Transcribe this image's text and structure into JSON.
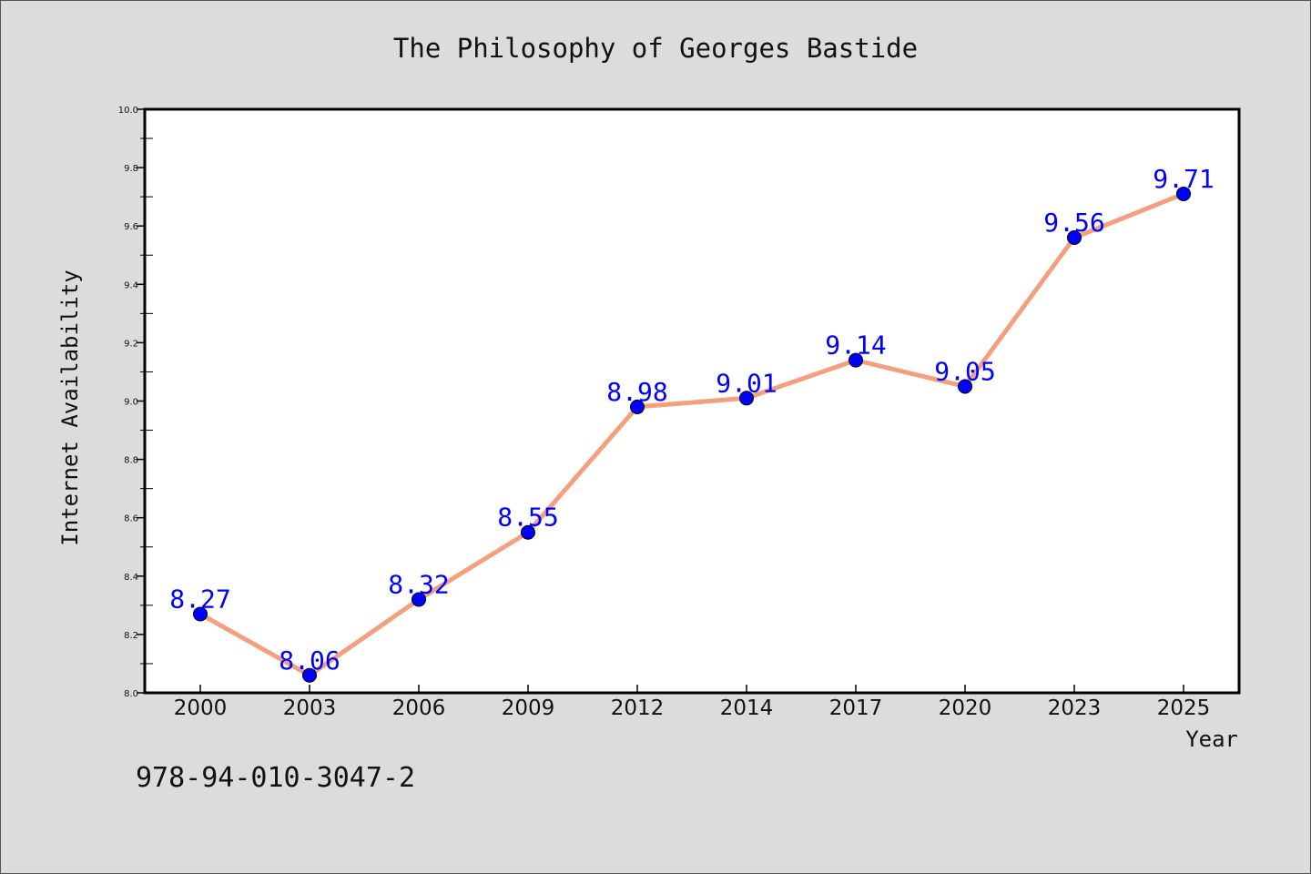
{
  "chart_data": {
    "type": "line",
    "title": "The Philosophy of Georges Bastide",
    "xlabel": "Year",
    "ylabel": "Internet Availability",
    "categories": [
      "2000",
      "2003",
      "2006",
      "2009",
      "2012",
      "2014",
      "2017",
      "2020",
      "2023",
      "2025"
    ],
    "series": [
      {
        "values": [
          8.27,
          8.06,
          8.32,
          8.55,
          8.98,
          9.01,
          9.14,
          9.05,
          9.56,
          9.71
        ]
      }
    ],
    "data_labels": [
      "8.27",
      "8.06",
      "8.32",
      "8.55",
      "8.98",
      "9.01",
      "9.14",
      "9.05",
      "9.56",
      "9.71"
    ],
    "ylim": [
      8.0,
      10.0
    ],
    "yticks": [
      "8.0",
      "8.2",
      "8.4",
      "8.6",
      "8.8",
      "9.0",
      "9.2",
      "9.4",
      "9.6",
      "9.8",
      "10.0"
    ],
    "grid": false,
    "colors": {
      "line": "#f4a07f",
      "marker": "#0000ff",
      "label": "#0000ff",
      "background": "#dcdcdc",
      "plot_background": "#ffffff"
    }
  },
  "annotation": {
    "isbn": "978-94-010-3047-2"
  }
}
